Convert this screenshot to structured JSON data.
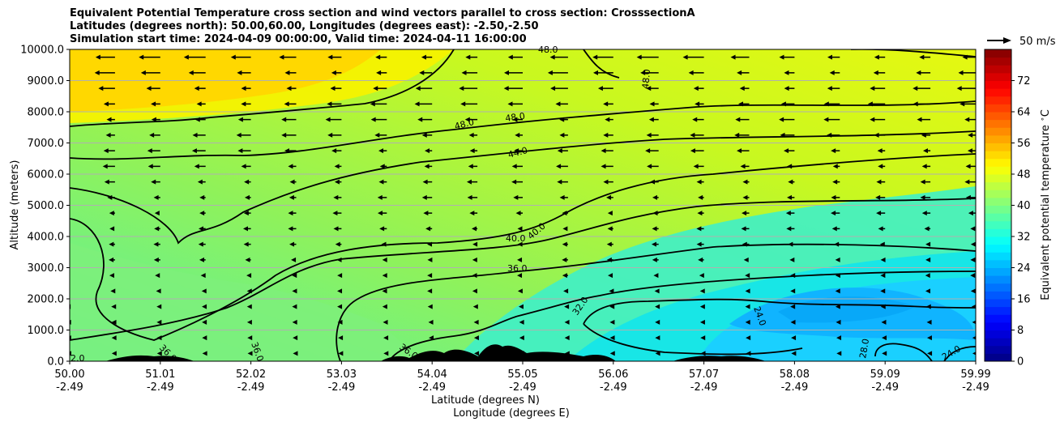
{
  "title_lines": [
    "Equivalent Potential Temperature cross section and wind vectors parallel to cross section: CrosssectionA",
    "Latitudes (degrees north): 50.00,60.00, Longitudes (degrees east): -2.50,-2.50",
    "Simulation start time: 2024-04-09 00:00:00, Valid time: 2024-04-11 16:00:00"
  ],
  "reference_vector": {
    "label": "50 m/s",
    "value": 50,
    "unit": "m/s"
  },
  "chart_data": {
    "type": "heatmap",
    "ylabel": "Altitude (meters)",
    "xlabel_lines": [
      "Latitude (degrees N)",
      "Longitude (degrees E)"
    ],
    "ylim": [
      0,
      10000
    ],
    "y_ticks": [
      "0.0",
      "1000.0",
      "2000.0",
      "3000.0",
      "4000.0",
      "5000.0",
      "6000.0",
      "7000.0",
      "8000.0",
      "9000.0",
      "10000.0"
    ],
    "x_ticks": [
      {
        "lat": "50.00",
        "lon": "-2.49"
      },
      {
        "lat": "51.01",
        "lon": "-2.49"
      },
      {
        "lat": "52.02",
        "lon": "-2.49"
      },
      {
        "lat": "53.03",
        "lon": "-2.49"
      },
      {
        "lat": "54.04",
        "lon": "-2.49"
      },
      {
        "lat": "55.05",
        "lon": "-2.49"
      },
      {
        "lat": "56.06",
        "lon": "-2.49"
      },
      {
        "lat": "57.07",
        "lon": "-2.49"
      },
      {
        "lat": "58.08",
        "lon": "-2.49"
      },
      {
        "lat": "59.09",
        "lon": "-2.49"
      },
      {
        "lat": "59.99",
        "lon": "-2.49"
      }
    ],
    "grid": "horizontal",
    "colorbar": {
      "label": "Equivalent potential temperature $^\\circ$C",
      "range": [
        0,
        80
      ],
      "ticks": [
        "0",
        "8",
        "16",
        "24",
        "32",
        "40",
        "48",
        "56",
        "64",
        "72"
      ],
      "colormap": "jet"
    },
    "contour_labels": [
      "48.0",
      "48.0",
      "48.0",
      "48.0",
      "44.0",
      "40.0",
      "40.0",
      "36.0",
      "32.0",
      "36.0",
      "36.0",
      "36.0",
      "28.0",
      "24.0",
      "28.0",
      "24.0",
      "2.0"
    ],
    "wind_direction": "westward (toward lower latitude)"
  }
}
